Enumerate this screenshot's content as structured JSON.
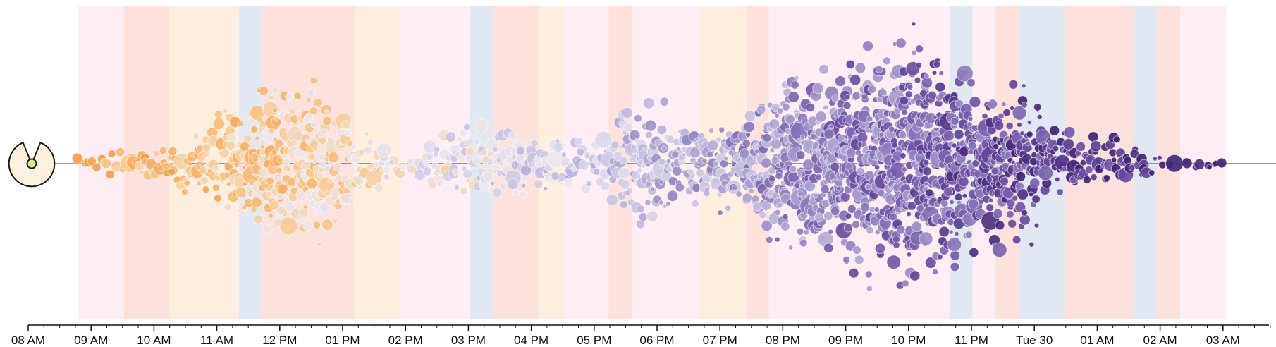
{
  "chart_data": {
    "type": "scatter",
    "description_style": "beeswarm timeline",
    "x_axis": {
      "ticks": [
        "08 AM",
        "09 AM",
        "10 AM",
        "11 AM",
        "12 PM",
        "01 PM",
        "02 PM",
        "03 PM",
        "04 PM",
        "05 PM",
        "06 PM",
        "07 PM",
        "08 PM",
        "09 PM",
        "10 PM",
        "11 PM",
        "Tue 30",
        "01 AM",
        "02 AM",
        "03 AM"
      ],
      "range_hours": [
        0,
        19.85
      ]
    },
    "bands": [
      {
        "start": 0.8,
        "end": 1.52,
        "color": "#fdeef4"
      },
      {
        "start": 1.52,
        "end": 2.25,
        "color": "#fde1dd"
      },
      {
        "start": 2.25,
        "end": 3.35,
        "color": "#fdeedd"
      },
      {
        "start": 3.35,
        "end": 3.72,
        "color": "#e2e8f2"
      },
      {
        "start": 3.72,
        "end": 5.18,
        "color": "#fde1dd"
      },
      {
        "start": 5.18,
        "end": 5.93,
        "color": "#fdeedd"
      },
      {
        "start": 5.93,
        "end": 7.03,
        "color": "#fdeef4"
      },
      {
        "start": 7.03,
        "end": 7.4,
        "color": "#e2e8f2"
      },
      {
        "start": 7.4,
        "end": 8.13,
        "color": "#fde1dd"
      },
      {
        "start": 8.13,
        "end": 8.5,
        "color": "#fdeedd"
      },
      {
        "start": 8.5,
        "end": 9.23,
        "color": "#fdeef4"
      },
      {
        "start": 9.23,
        "end": 9.6,
        "color": "#fde1dd"
      },
      {
        "start": 9.6,
        "end": 10.7,
        "color": "#fdeef4"
      },
      {
        "start": 10.7,
        "end": 11.43,
        "color": "#fdeedd"
      },
      {
        "start": 11.43,
        "end": 11.78,
        "color": "#fde1dd"
      },
      {
        "start": 11.78,
        "end": 14.65,
        "color": "#fdeef4"
      },
      {
        "start": 14.65,
        "end": 15.02,
        "color": "#e2e8f2"
      },
      {
        "start": 15.02,
        "end": 15.38,
        "color": "#fdeef4"
      },
      {
        "start": 15.38,
        "end": 15.75,
        "color": "#fde1dd"
      },
      {
        "start": 15.75,
        "end": 16.48,
        "color": "#e2e8f2"
      },
      {
        "start": 16.48,
        "end": 17.58,
        "color": "#fde1dd"
      },
      {
        "start": 17.58,
        "end": 17.95,
        "color": "#e2e8f2"
      },
      {
        "start": 17.95,
        "end": 18.32,
        "color": "#fde1dd"
      },
      {
        "start": 18.32,
        "end": 19.05,
        "color": "#fdeef4"
      }
    ],
    "density_profile": [
      {
        "t": 0.75,
        "half_height": 12,
        "n": 4
      },
      {
        "t": 1.5,
        "half_height": 22,
        "n": 24
      },
      {
        "t": 2.25,
        "half_height": 30,
        "n": 36
      },
      {
        "t": 3.0,
        "half_height": 70,
        "n": 70
      },
      {
        "t": 3.75,
        "half_height": 105,
        "n": 130
      },
      {
        "t": 4.5,
        "half_height": 120,
        "n": 150
      },
      {
        "t": 5.25,
        "half_height": 45,
        "n": 55
      },
      {
        "t": 6.0,
        "half_height": 18,
        "n": 18
      },
      {
        "t": 6.75,
        "half_height": 50,
        "n": 60
      },
      {
        "t": 7.5,
        "half_height": 55,
        "n": 75
      },
      {
        "t": 8.25,
        "half_height": 35,
        "n": 40
      },
      {
        "t": 9.0,
        "half_height": 40,
        "n": 40
      },
      {
        "t": 9.75,
        "half_height": 110,
        "n": 110
      },
      {
        "t": 10.5,
        "half_height": 55,
        "n": 60
      },
      {
        "t": 11.25,
        "half_height": 70,
        "n": 90
      },
      {
        "t": 12.0,
        "half_height": 120,
        "n": 170
      },
      {
        "t": 12.75,
        "half_height": 140,
        "n": 210
      },
      {
        "t": 13.5,
        "half_height": 155,
        "n": 250
      },
      {
        "t": 14.25,
        "half_height": 185,
        "n": 290
      },
      {
        "t": 15.0,
        "half_height": 130,
        "n": 180
      },
      {
        "t": 15.75,
        "half_height": 120,
        "n": 150
      },
      {
        "t": 16.5,
        "half_height": 45,
        "n": 45
      },
      {
        "t": 17.25,
        "half_height": 42,
        "n": 40
      },
      {
        "t": 18.0,
        "half_height": 15,
        "n": 8
      },
      {
        "t": 18.75,
        "half_height": 8,
        "n": 6
      },
      {
        "t": 19.05,
        "half_height": 4,
        "n": 2
      }
    ],
    "color_scale": [
      "#f2a04a",
      "#f9c98d",
      "#ebe8ef",
      "#c9c4e2",
      "#9b8fc7",
      "#6b4ea2",
      "#3f2372"
    ],
    "legend": "none",
    "grid": false
  }
}
